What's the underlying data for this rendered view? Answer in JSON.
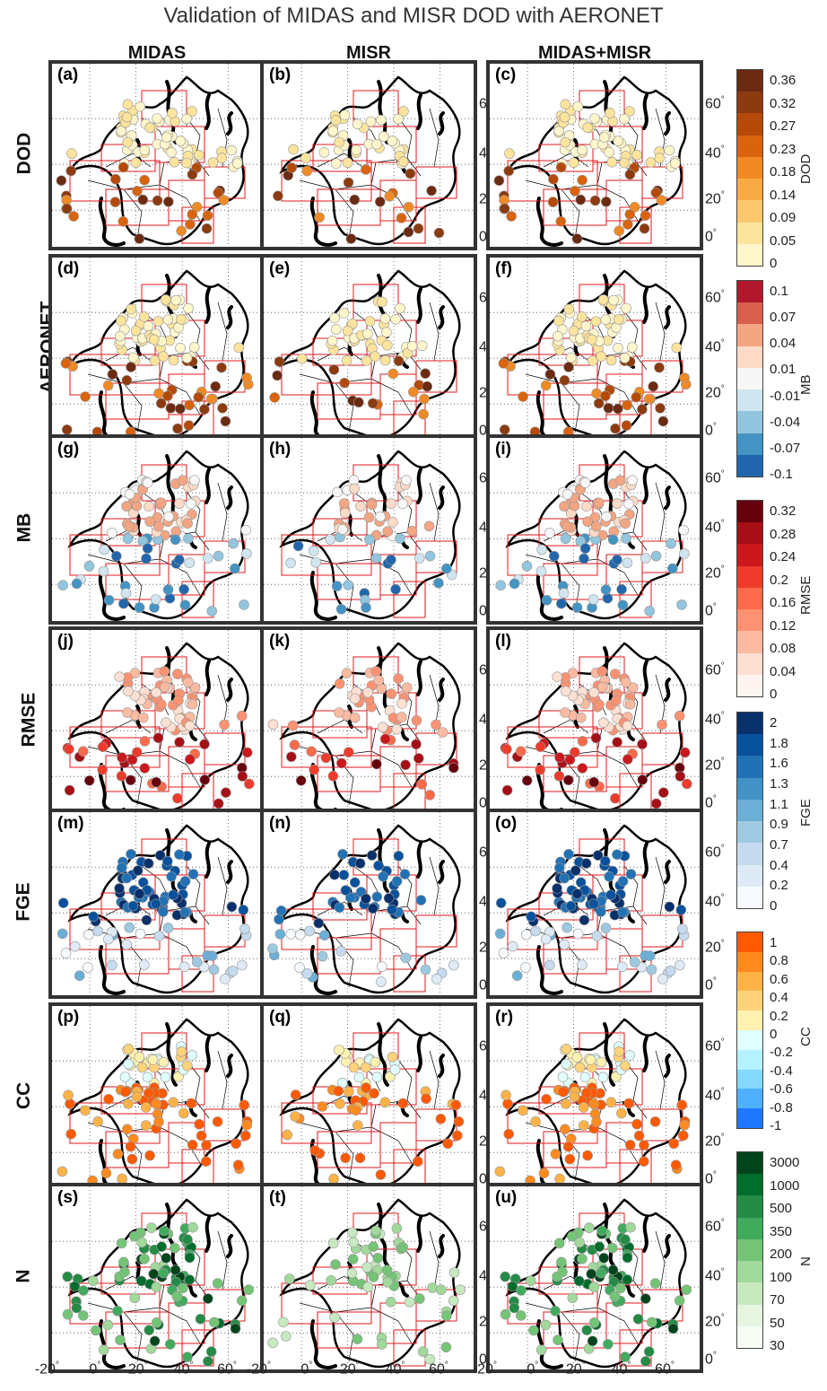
{
  "title": "Validation of MIDAS and MISR DOD with AERONET",
  "columns": [
    "MIDAS",
    "MISR",
    "MIDAS+MISR"
  ],
  "rows": [
    {
      "label": "DOD",
      "panels": [
        "(a)",
        "(b)",
        "(c)"
      ]
    },
    {
      "label": "AERONET",
      "panels": [
        "(d)",
        "(e)",
        "(f)"
      ]
    },
    {
      "label": "MB",
      "panels": [
        "(g)",
        "(h)",
        "(i)"
      ]
    },
    {
      "label": "RMSE",
      "panels": [
        "(j)",
        "(k)",
        "(l)"
      ]
    },
    {
      "label": "FGE",
      "panels": [
        "(m)",
        "(n)",
        "(o)"
      ]
    },
    {
      "label": "CC",
      "panels": [
        "(p)",
        "(q)",
        "(r)"
      ]
    },
    {
      "label": "N",
      "panels": [
        "(s)",
        "(t)",
        "(u)"
      ]
    }
  ],
  "lat_ticks": [
    "0",
    "20",
    "40",
    "60"
  ],
  "lon_ticks": [
    "-20",
    "0",
    "20",
    "40",
    "60"
  ],
  "degree_symbol": "°",
  "colorbars": [
    {
      "name": "DOD",
      "ticks": [
        "0.36",
        "0.32",
        "0.27",
        "0.23",
        "0.18",
        "0.14",
        "0.09",
        "0.05",
        "0"
      ],
      "colors": [
        "#6b2a12",
        "#8c3a0f",
        "#b54a08",
        "#d9640d",
        "#f08a24",
        "#f8aa45",
        "#fbc86e",
        "#fde49d",
        "#fff6cc"
      ]
    },
    {
      "name": "MB",
      "ticks": [
        "0.1",
        "0.07",
        "0.04",
        "0.01",
        "-0.01",
        "-0.04",
        "-0.07",
        "-0.1"
      ],
      "colors": [
        "#b2182b",
        "#d6604d",
        "#f4a582",
        "#fddbc7",
        "#f7f7f7",
        "#d1e5f0",
        "#92c5de",
        "#4393c3",
        "#2166ac"
      ]
    },
    {
      "name": "RMSE",
      "ticks": [
        "0.32",
        "0.28",
        "0.24",
        "0.2",
        "0.16",
        "0.12",
        "0.08",
        "0.04",
        "0"
      ],
      "colors": [
        "#67000d",
        "#a50f15",
        "#cb181d",
        "#ef3b2c",
        "#fb6a4a",
        "#fc9272",
        "#fcbba1",
        "#fee0d2",
        "#fff5f0"
      ]
    },
    {
      "name": "FGE",
      "ticks": [
        "2",
        "1.8",
        "1.6",
        "1.3",
        "1.1",
        "0.9",
        "0.7",
        "0.4",
        "0.2",
        "0"
      ],
      "colors": [
        "#08306b",
        "#08519c",
        "#2171b5",
        "#4292c6",
        "#6baed6",
        "#9ecae1",
        "#c6dbef",
        "#deebf7",
        "#f7fbff"
      ]
    },
    {
      "name": "CC",
      "ticks": [
        "1",
        "0.8",
        "0.6",
        "0.4",
        "0.2",
        "0",
        "-0.2",
        "-0.4",
        "-0.6",
        "-0.8",
        "-1"
      ],
      "colors": [
        "#ff5a00",
        "#ff8a1f",
        "#ffb347",
        "#ffd37a",
        "#fff2b0",
        "#e0ffff",
        "#b5f2ff",
        "#85d8ff",
        "#4fb0ff",
        "#1f78ff"
      ]
    },
    {
      "name": "N",
      "ticks": [
        "3000",
        "1000",
        "500",
        "350",
        "200",
        "100",
        "70",
        "50",
        "30"
      ],
      "colors": [
        "#00441b",
        "#006d2c",
        "#238b45",
        "#41ab5d",
        "#74c476",
        "#a1d99b",
        "#c7e9c0",
        "#e5f5e0",
        "#f7fcf5"
      ]
    }
  ],
  "colors": {
    "frame": "#333333",
    "grid": "#555555",
    "region_box": "#e31a1c",
    "coast": "#000000"
  }
}
